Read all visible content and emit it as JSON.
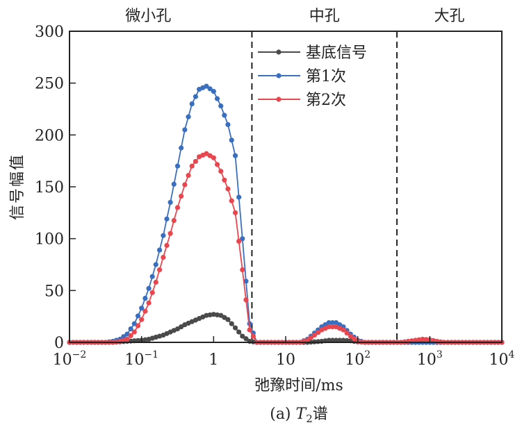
{
  "chart_data": {
    "type": "line",
    "caption_prefix": "(a) ",
    "caption_italic": "T",
    "caption_sub": "2",
    "caption_suffix": "谱",
    "xlabel": "弛豫时间/ms",
    "ylabel": "信号幅值",
    "xscale": "log",
    "xlim": [
      0.01,
      10000
    ],
    "ylim": [
      0,
      300
    ],
    "xticks": [
      {
        "base": "10",
        "exp": "−2"
      },
      {
        "base": "10",
        "exp": "−1"
      },
      {
        "base": "1",
        "exp": ""
      },
      {
        "base": "10",
        "exp": ""
      },
      {
        "base": "10",
        "exp": "2"
      },
      {
        "base": "10",
        "exp": "3"
      },
      {
        "base": "10",
        "exp": "4"
      }
    ],
    "yticks": [
      "0",
      "50",
      "100",
      "150",
      "200",
      "250",
      "300"
    ],
    "regions": [
      {
        "label": "微小孔"
      },
      {
        "label": "中孔"
      },
      {
        "label": "大孔"
      }
    ],
    "boundaries_ms": [
      3.4,
      350
    ],
    "legend_position": "top-center",
    "x": [
      0.01,
      0.0126,
      0.0158,
      0.02,
      0.0251,
      0.0316,
      0.0398,
      0.0501,
      0.0631,
      0.0794,
      0.1,
      0.126,
      0.158,
      0.2,
      0.251,
      0.316,
      0.398,
      0.501,
      0.631,
      0.794,
      1,
      1.26,
      1.58,
      2,
      2.51,
      3.16,
      3.98,
      5.01,
      6.31,
      7.94,
      10,
      12.6,
      15.8,
      20,
      25.1,
      31.6,
      39.8,
      50.1,
      63.1,
      79.4,
      100,
      126,
      158,
      200,
      251,
      316,
      398,
      501,
      631,
      794,
      1000,
      1260,
      1580,
      2000,
      2510,
      3160,
      3980,
      5010,
      6310,
      7940,
      10000
    ],
    "series": [
      {
        "name": "基底信号",
        "color": "#4a4a4a",
        "values": [
          0,
          0,
          0,
          0,
          0,
          0,
          0,
          0.5,
          1,
          1.5,
          2,
          3,
          5,
          7,
          10,
          13,
          17,
          20,
          23,
          26,
          27,
          26,
          22,
          14,
          6,
          1,
          0,
          0,
          0,
          0,
          0,
          0,
          0,
          0,
          0.5,
          1,
          2,
          2,
          2,
          1.5,
          0.5,
          0,
          0,
          0,
          0,
          0,
          0,
          0,
          0,
          0,
          0,
          0,
          0,
          0,
          0,
          0,
          0,
          0,
          0,
          0,
          0
        ]
      },
      {
        "name": "第1次",
        "color": "#3a6fc0",
        "values": [
          0,
          0,
          0,
          0,
          0,
          0,
          1,
          3,
          8,
          18,
          33,
          52,
          75,
          103,
          135,
          170,
          205,
          230,
          244,
          247,
          242,
          228,
          210,
          180,
          100,
          18,
          0,
          0,
          0,
          0,
          0,
          0,
          0,
          3,
          9,
          15,
          19,
          19,
          15,
          8,
          2,
          0,
          0,
          0,
          0,
          0,
          0,
          0,
          0,
          0,
          0,
          0,
          0,
          0,
          0,
          0,
          0,
          0,
          0,
          0,
          0
        ]
      },
      {
        "name": "第2次",
        "color": "#e8474f",
        "values": [
          0,
          0,
          0,
          0,
          0,
          0,
          0,
          1,
          3,
          10,
          22,
          38,
          58,
          82,
          105,
          130,
          152,
          170,
          179,
          182,
          178,
          165,
          148,
          125,
          70,
          12,
          0,
          0,
          0,
          0,
          0,
          0,
          0,
          2,
          7,
          12,
          15,
          15,
          12,
          6,
          1,
          0,
          0,
          0,
          0,
          0,
          0,
          1,
          2,
          3,
          2.5,
          1,
          0,
          0,
          0,
          0,
          0,
          0,
          0,
          0,
          0
        ]
      }
    ]
  }
}
